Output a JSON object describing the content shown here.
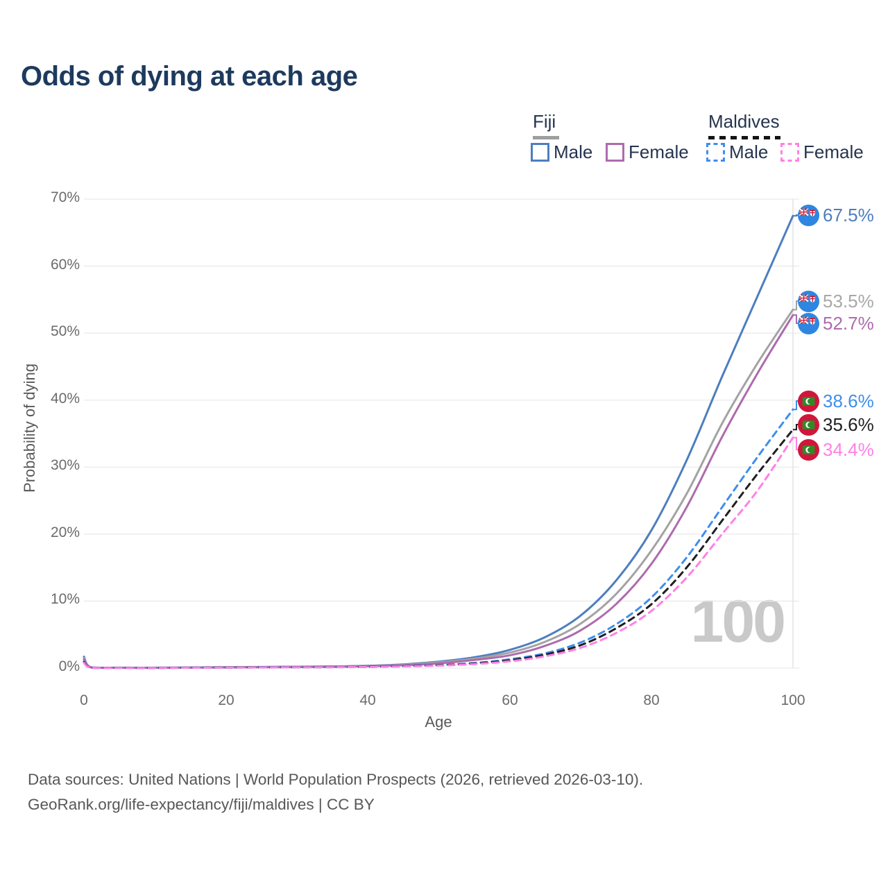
{
  "title": "Odds of dying at each age",
  "legend": {
    "groups": [
      {
        "name": "Fiji",
        "line_style": "solid",
        "header_swatch_color": "#9e9e9e",
        "items": [
          {
            "label": "Male",
            "color": "#4d7ebf"
          },
          {
            "label": "Female",
            "color": "#ad6bad"
          }
        ]
      },
      {
        "name": "Maldives",
        "line_style": "dashed",
        "header_swatch_color": "#141414",
        "items": [
          {
            "label": "Male",
            "color": "#3e8eec"
          },
          {
            "label": "Female",
            "color": "#ff80e6"
          }
        ]
      }
    ]
  },
  "axes": {
    "y": {
      "title": "Probability of dying",
      "ticks": [
        "70%",
        "60%",
        "50%",
        "40%",
        "30%",
        "20%",
        "10%",
        "0%"
      ]
    },
    "x": {
      "title": "Age",
      "ticks": [
        "0",
        "20",
        "40",
        "60",
        "80",
        "100"
      ]
    }
  },
  "watermark": "100",
  "footer": {
    "line1": "Data sources: United Nations | World Population Prospects (2026, retrieved 2026-03-10).",
    "line2": "GeoRank.org/life-expectancy/fiji/maldives | CC BY"
  },
  "chart_data": {
    "type": "line",
    "title": "Odds of dying at each age",
    "xlabel": "Age",
    "ylabel": "Probability of dying",
    "xlim": [
      0,
      100
    ],
    "ylim": [
      0,
      70
    ],
    "y_unit": "%",
    "grid": "horizontal",
    "legend_position": "top-right",
    "age_indicator": 100,
    "x": [
      0,
      1,
      5,
      10,
      15,
      20,
      25,
      30,
      35,
      40,
      45,
      50,
      55,
      60,
      65,
      70,
      75,
      80,
      85,
      90,
      95,
      100
    ],
    "series": [
      {
        "name": "Fiji Male",
        "country": "Fiji",
        "sex": "Male",
        "flag": "fiji",
        "color": "#4d7ebf",
        "dash": false,
        "end_label": "67.5%",
        "end_value": 67.5,
        "values": [
          1.7,
          0.12,
          0.06,
          0.06,
          0.1,
          0.14,
          0.17,
          0.21,
          0.26,
          0.35,
          0.55,
          0.95,
          1.6,
          2.7,
          4.6,
          7.8,
          13.0,
          20.5,
          31.0,
          43.5,
          55.5,
          67.5
        ]
      },
      {
        "name": "Fiji",
        "country": "Fiji",
        "sex": "All",
        "flag": "fiji",
        "color": "#a3a3a3",
        "dash": false,
        "end_label": "53.5%",
        "end_value": 53.5,
        "values": [
          1.5,
          0.11,
          0.05,
          0.05,
          0.08,
          0.12,
          0.15,
          0.18,
          0.23,
          0.31,
          0.48,
          0.85,
          1.4,
          2.3,
          3.9,
          6.6,
          11.0,
          17.5,
          26.0,
          36.5,
          45.5,
          53.5
        ]
      },
      {
        "name": "Fiji Female",
        "country": "Fiji",
        "sex": "Female",
        "flag": "fiji",
        "color": "#ad6bad",
        "dash": false,
        "end_label": "52.7%",
        "end_value": 52.7,
        "values": [
          1.3,
          0.1,
          0.05,
          0.04,
          0.07,
          0.09,
          0.12,
          0.15,
          0.19,
          0.27,
          0.42,
          0.7,
          1.2,
          1.9,
          3.3,
          5.6,
          9.5,
          15.5,
          24.0,
          34.5,
          44.0,
          52.7
        ]
      },
      {
        "name": "Maldives Male",
        "country": "Maldives",
        "sex": "Male",
        "flag": "maldives",
        "color": "#3e8eec",
        "dash": true,
        "end_label": "38.6%",
        "end_value": 38.6,
        "values": [
          1.0,
          0.08,
          0.04,
          0.04,
          0.07,
          0.1,
          0.12,
          0.14,
          0.17,
          0.22,
          0.3,
          0.45,
          0.75,
          1.3,
          2.2,
          3.8,
          6.5,
          10.5,
          16.5,
          24.0,
          31.5,
          38.6
        ]
      },
      {
        "name": "Maldives",
        "country": "Maldives",
        "sex": "All",
        "flag": "maldives",
        "color": "#1f1f1f",
        "dash": true,
        "end_label": "35.6%",
        "end_value": 35.6,
        "values": [
          0.9,
          0.07,
          0.04,
          0.03,
          0.06,
          0.08,
          0.1,
          0.12,
          0.15,
          0.19,
          0.27,
          0.41,
          0.68,
          1.15,
          2.0,
          3.4,
          5.9,
          9.5,
          15.0,
          22.0,
          29.0,
          35.6
        ]
      },
      {
        "name": "Maldives Female",
        "country": "Maldives",
        "sex": "Female",
        "flag": "maldives",
        "color": "#ff80e6",
        "dash": true,
        "end_label": "34.4%",
        "end_value": 34.4,
        "values": [
          0.8,
          0.06,
          0.03,
          0.03,
          0.05,
          0.07,
          0.09,
          0.11,
          0.13,
          0.17,
          0.24,
          0.36,
          0.6,
          1.0,
          1.75,
          3.0,
          5.2,
          8.5,
          13.5,
          20.0,
          26.5,
          34.4
        ]
      }
    ]
  }
}
